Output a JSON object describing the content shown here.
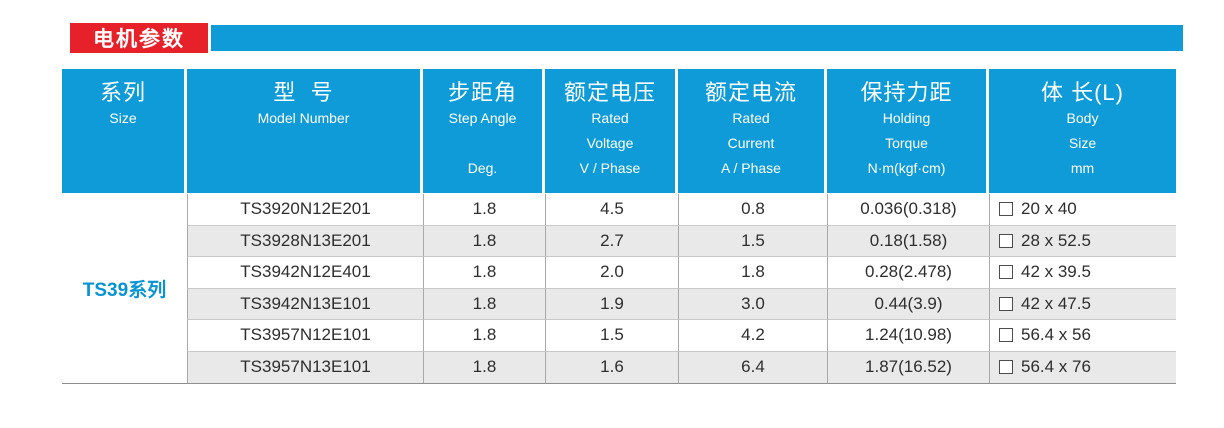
{
  "title": {
    "badge": "电机参数"
  },
  "colors": {
    "accent_blue": "#0e9bd8",
    "badge_red": "#e62129",
    "row_alt_gray": "#e9e9e9",
    "series_text_blue": "#0893d3"
  },
  "table": {
    "series_label": "TS39系列",
    "columns": [
      {
        "cn": "系列",
        "en": [
          "Size"
        ]
      },
      {
        "cn": "型  号",
        "en": [
          "Model Number"
        ]
      },
      {
        "cn": "步距角",
        "en": [
          "Step Angle",
          "",
          "Deg."
        ]
      },
      {
        "cn": "额定电压",
        "en": [
          "Rated",
          "Voltage",
          "V / Phase"
        ]
      },
      {
        "cn": "额定电流",
        "en": [
          "Rated",
          "Current",
          "A / Phase"
        ]
      },
      {
        "cn": "保持力距",
        "en": [
          "Holding",
          "Torque",
          "N·m(kgf·cm)"
        ]
      },
      {
        "cn": "体 长(L)",
        "en": [
          "Body",
          "Size",
          "mm"
        ]
      }
    ],
    "rows": [
      {
        "model": "TS3920N12E201",
        "step_angle": "1.8",
        "rated_voltage": "4.5",
        "rated_current": "0.8",
        "holding_torque": "0.036(0.318)",
        "body_size": "20 x 40"
      },
      {
        "model": "TS3928N13E201",
        "step_angle": "1.8",
        "rated_voltage": "2.7",
        "rated_current": "1.5",
        "holding_torque": "0.18(1.58)",
        "body_size": "28 x 52.5"
      },
      {
        "model": "TS3942N12E401",
        "step_angle": "1.8",
        "rated_voltage": "2.0",
        "rated_current": "1.8",
        "holding_torque": "0.28(2.478)",
        "body_size": "42 x 39.5"
      },
      {
        "model": "TS3942N13E101",
        "step_angle": "1.8",
        "rated_voltage": "1.9",
        "rated_current": "3.0",
        "holding_torque": "0.44(3.9)",
        "body_size": "42 x 47.5"
      },
      {
        "model": "TS3957N12E101",
        "step_angle": "1.8",
        "rated_voltage": "1.5",
        "rated_current": "4.2",
        "holding_torque": "1.24(10.98)",
        "body_size": "56.4 x 56"
      },
      {
        "model": "TS3957N13E101",
        "step_angle": "1.8",
        "rated_voltage": "1.6",
        "rated_current": "6.4",
        "holding_torque": "1.87(16.52)",
        "body_size": "56.4 x 76"
      }
    ]
  }
}
